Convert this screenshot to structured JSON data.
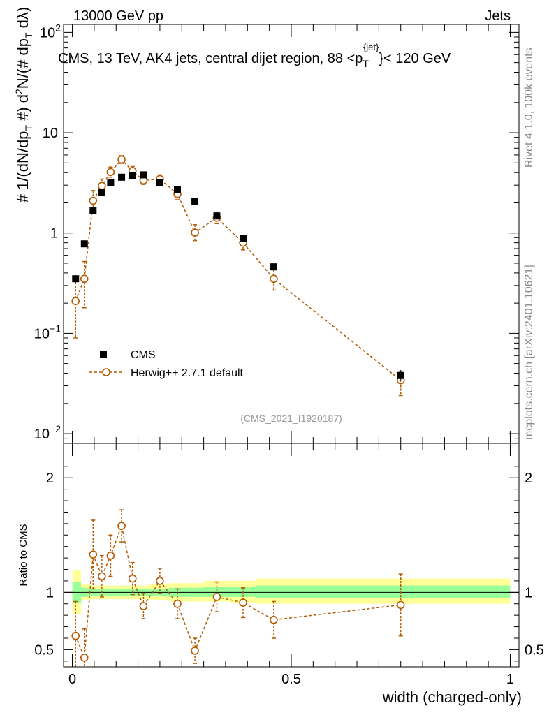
{
  "header": {
    "left": "13000 GeV pp",
    "right": "Jets",
    "title_main": "CMS, 13 TeV, AK4 jets, central dijet region, 88 <p",
    "title_sub": "T",
    "title_sup": "{jet}",
    "title_tail": "}< 120 GeV",
    "analysis_id": "(CMS_2021_I1920187)"
  },
  "side": {
    "rivet": "Rivet 4.1.0,  100k events",
    "mcplots": "mcplots.cern.ch [arXiv:2401.10621]"
  },
  "colors": {
    "data": "#000000",
    "mc": "#b35900",
    "band_inner": "#99ff99",
    "band_outer": "#ffff99"
  },
  "chart_data": [
    {
      "type": "scatter",
      "panel": "main",
      "yscale": "log",
      "ylabel": "# 1/(dN/dp_T #) d²N/(#dp_T dλ)",
      "xlim": [
        -0.02,
        1.02
      ],
      "ylim": [
        0.008,
        120
      ],
      "y_ticks": [
        {
          "value": 0.01,
          "label": "10",
          "exp": "−2"
        },
        {
          "value": 0.1,
          "label": "10",
          "exp": "−1"
        },
        {
          "value": 1,
          "label": "1",
          "exp": ""
        },
        {
          "value": 10,
          "label": "10",
          "exp": ""
        },
        {
          "value": 100,
          "label": "10",
          "exp": "2"
        }
      ],
      "legend": [
        {
          "name": "CMS",
          "marker": "square"
        },
        {
          "name": "Herwig++ 2.7.1 default",
          "marker": "open-circle-dashed"
        }
      ],
      "legend_position": "bottom-left",
      "series": [
        {
          "name": "CMS",
          "x": [
            0.0075,
            0.0275,
            0.0475,
            0.0675,
            0.0875,
            0.1125,
            0.1375,
            0.1625,
            0.2,
            0.24,
            0.28,
            0.33,
            0.39,
            0.46,
            0.75
          ],
          "y": [
            0.35,
            0.78,
            1.68,
            2.55,
            3.2,
            3.6,
            3.75,
            3.8,
            3.2,
            2.72,
            2.05,
            1.48,
            0.88,
            0.46,
            0.038
          ],
          "err_up": [
            0.03,
            0.05,
            0.08,
            0.1,
            0.12,
            0.12,
            0.13,
            0.13,
            0.12,
            0.12,
            0.1,
            0.08,
            0.06,
            0.04,
            0.005
          ],
          "err_down": [
            0.03,
            0.05,
            0.08,
            0.1,
            0.12,
            0.12,
            0.13,
            0.13,
            0.12,
            0.12,
            0.1,
            0.08,
            0.06,
            0.04,
            0.005
          ]
        },
        {
          "name": "Herwig++ 2.7.1 default",
          "x": [
            0.0075,
            0.0275,
            0.0475,
            0.0675,
            0.0875,
            0.1125,
            0.1375,
            0.1625,
            0.2,
            0.24,
            0.28,
            0.33,
            0.39,
            0.46,
            0.75
          ],
          "y": [
            0.21,
            0.35,
            2.1,
            2.95,
            4.05,
            5.4,
            4.15,
            3.35,
            3.45,
            2.45,
            1.01,
            1.42,
            0.8,
            0.35,
            0.034
          ],
          "err_up": [
            0.14,
            0.17,
            0.55,
            0.5,
            0.5,
            0.5,
            0.45,
            0.35,
            0.35,
            0.3,
            0.2,
            0.2,
            0.12,
            0.08,
            0.008
          ],
          "err_down": [
            0.12,
            0.17,
            0.45,
            0.4,
            0.45,
            0.45,
            0.4,
            0.3,
            0.3,
            0.3,
            0.17,
            0.18,
            0.12,
            0.08,
            0.01
          ]
        }
      ]
    },
    {
      "type": "scatter",
      "panel": "ratio",
      "ylabel": "Ratio to CMS",
      "xlabel": "width (charged-only)",
      "xlim": [
        -0.02,
        1.02
      ],
      "ylim": [
        0.35,
        2.3
      ],
      "y_ticks": [
        0.5,
        1,
        2
      ],
      "y_tick_labels": [
        "0.5",
        "1",
        "2"
      ],
      "x_ticks": [
        0,
        0.5,
        1
      ],
      "x_tick_labels": [
        "0",
        "0.5",
        "1"
      ],
      "reference_line": 1,
      "bands": {
        "edges": [
          0,
          0.02,
          0.04,
          0.06,
          0.08,
          0.1,
          0.125,
          0.15,
          0.175,
          0.22,
          0.26,
          0.3,
          0.36,
          0.42,
          0.5,
          1.0
        ],
        "inner_lo": [
          0.91,
          0.96,
          0.97,
          0.97,
          0.97,
          0.97,
          0.97,
          0.97,
          0.97,
          0.96,
          0.96,
          0.96,
          0.96,
          0.95,
          0.95
        ],
        "inner_hi": [
          1.09,
          1.04,
          1.03,
          1.03,
          1.03,
          1.03,
          1.03,
          1.03,
          1.03,
          1.04,
          1.04,
          1.05,
          1.05,
          1.06,
          1.06
        ],
        "outer_lo": [
          0.81,
          0.93,
          0.94,
          0.94,
          0.94,
          0.94,
          0.94,
          0.94,
          0.93,
          0.92,
          0.92,
          0.92,
          0.91,
          0.9,
          0.9
        ],
        "outer_hi": [
          1.19,
          1.07,
          1.06,
          1.06,
          1.06,
          1.06,
          1.06,
          1.06,
          1.07,
          1.08,
          1.08,
          1.1,
          1.1,
          1.12,
          1.12
        ]
      },
      "series": [
        {
          "name": "Herwig++ 2.7.1 default",
          "x": [
            0.0075,
            0.0275,
            0.0475,
            0.0675,
            0.0875,
            0.1125,
            0.1375,
            0.1625,
            0.2,
            0.24,
            0.28,
            0.33,
            0.39,
            0.46,
            0.75
          ],
          "y": [
            0.62,
            0.43,
            1.33,
            1.14,
            1.32,
            1.58,
            1.12,
            0.88,
            1.1,
            0.9,
            0.49,
            0.96,
            0.91,
            0.76,
            0.89
          ],
          "err_up": [
            0.3,
            0.25,
            0.3,
            0.18,
            0.18,
            0.14,
            0.14,
            0.11,
            0.11,
            0.13,
            0.11,
            0.13,
            0.13,
            0.16,
            0.27
          ],
          "err_down": [
            0.3,
            0.25,
            0.3,
            0.18,
            0.18,
            0.14,
            0.14,
            0.11,
            0.11,
            0.13,
            0.11,
            0.13,
            0.13,
            0.16,
            0.27
          ]
        }
      ]
    }
  ]
}
